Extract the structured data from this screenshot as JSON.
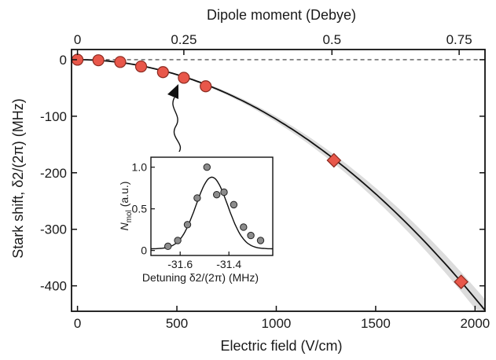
{
  "chart_data": [
    {
      "id": "main",
      "type": "scatter",
      "xlabel": "Electric field (V/cm)",
      "ylabel": "Stark shift, δ2/(2π) (MHz)",
      "top_xlabel": "Dipole moment (Debye)",
      "xlim": [
        -30,
        2050
      ],
      "ylim": [
        -445,
        18
      ],
      "xticks": [
        0,
        500,
        1000,
        1500,
        2000
      ],
      "xtick_labels": [
        "0",
        "500",
        "1000",
        "1500",
        "2000"
      ],
      "yticks": [
        0,
        -100,
        -200,
        -300,
        -400
      ],
      "ytick_labels": [
        "0",
        "-100",
        "-200",
        "-300",
        "-400"
      ],
      "top_ticks": [
        {
          "label": "0",
          "x": 0
        },
        {
          "label": "0.25",
          "x": 535
        },
        {
          "label": "0.5",
          "x": 1280
        },
        {
          "label": "0.75",
          "x": 1920
        }
      ],
      "reference_line_y": 0,
      "series": [
        {
          "marker": "circle",
          "color": "#e8574a",
          "points": [
            {
              "x": 0,
              "y": 0
            },
            {
              "x": 105,
              "y": -1
            },
            {
              "x": 215,
              "y": -4
            },
            {
              "x": 320,
              "y": -12
            },
            {
              "x": 430,
              "y": -22
            },
            {
              "x": 535,
              "y": -32
            },
            {
              "x": 645,
              "y": -47
            }
          ]
        },
        {
          "marker": "diamond",
          "color": "#e8574a",
          "points": [
            {
              "x": 1290,
              "y": -178
            },
            {
              "x": 1930,
              "y": -393
            }
          ]
        }
      ],
      "fit_curve": {
        "form": "quadratic",
        "coefficient_y_per_x2": -0.0001055,
        "band_color": "#dcdcdc"
      }
    },
    {
      "id": "inset",
      "type": "scatter",
      "xlabel": "Detuning δ2/(2π) (MHz)",
      "ylabel": "Nmol (a.u.)",
      "ylabel_main": "N",
      "ylabel_sub": "mol",
      "ylabel_rest": " (a.u.)",
      "xlim": [
        -31.72,
        -31.22
      ],
      "ylim": [
        -0.06,
        1.12
      ],
      "xticks": [
        -31.6,
        -31.4
      ],
      "xtick_labels": [
        "-31.6",
        "-31.4"
      ],
      "yticks": [
        0,
        0.5,
        1.0
      ],
      "ytick_labels": [
        "0",
        "0.5",
        "1.0"
      ],
      "points": [
        {
          "x": -31.65,
          "y": 0.05
        },
        {
          "x": -31.61,
          "y": 0.12
        },
        {
          "x": -31.57,
          "y": 0.31
        },
        {
          "x": -31.53,
          "y": 0.63
        },
        {
          "x": -31.49,
          "y": 1.0
        },
        {
          "x": -31.45,
          "y": 0.67
        },
        {
          "x": -31.42,
          "y": 0.7
        },
        {
          "x": -31.38,
          "y": 0.55
        },
        {
          "x": -31.34,
          "y": 0.28
        },
        {
          "x": -31.31,
          "y": 0.18
        },
        {
          "x": -31.27,
          "y": 0.12
        }
      ],
      "fit_curve": {
        "form": "gaussian",
        "center": -31.47,
        "sigma": 0.065,
        "amplitude": 0.86,
        "offset": 0.02
      }
    }
  ]
}
